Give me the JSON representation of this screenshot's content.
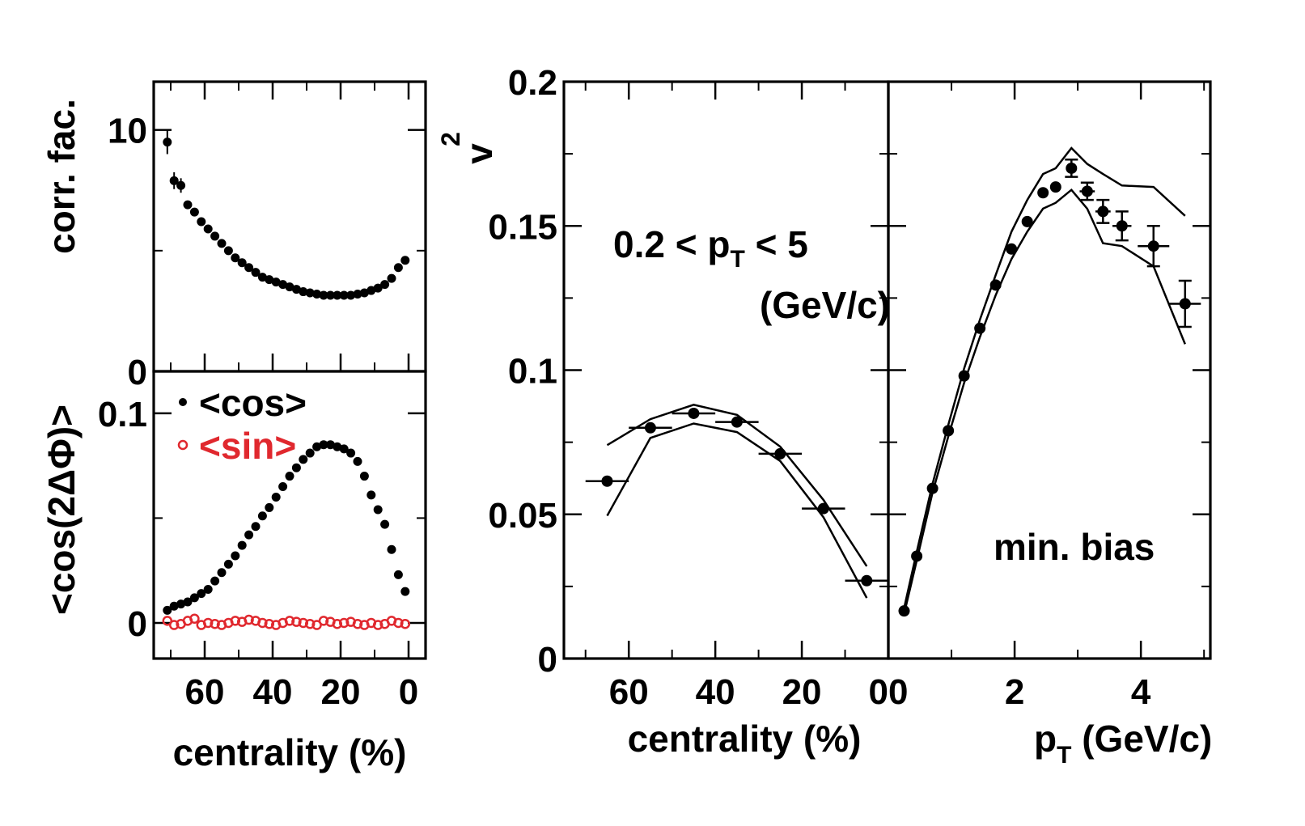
{
  "colors": {
    "cos": "#000000",
    "sin": "#e0282e",
    "axis": "#000000"
  },
  "chart_data": [
    {
      "type": "scatter",
      "ylabel": "corr. fac.",
      "xlim": [
        75,
        -5
      ],
      "ylim": [
        0,
        12
      ],
      "xticks": [
        60,
        40,
        20,
        0
      ],
      "yticks": [
        0,
        10
      ],
      "yticklabels": [
        "0",
        "10"
      ],
      "series": [
        {
          "x": [
            71,
            69,
            67,
            65,
            63,
            61,
            59,
            57,
            55,
            53,
            51,
            49,
            47,
            45,
            43,
            41,
            39,
            37,
            35,
            33,
            31,
            29,
            27,
            25,
            23,
            21,
            19,
            17,
            15,
            13,
            11,
            9,
            7,
            5,
            3,
            1
          ],
          "y": [
            9.5,
            7.9,
            7.7,
            6.9,
            6.6,
            6.2,
            5.9,
            5.6,
            5.3,
            5.0,
            4.7,
            4.5,
            4.3,
            4.1,
            3.9,
            3.8,
            3.7,
            3.6,
            3.5,
            3.4,
            3.3,
            3.25,
            3.2,
            3.15,
            3.15,
            3.15,
            3.15,
            3.15,
            3.2,
            3.25,
            3.35,
            3.45,
            3.6,
            3.85,
            4.3,
            4.6
          ],
          "yerr": [
            0.5,
            0.35,
            0.3,
            0.15,
            0.1,
            0.1,
            0.08,
            0.05,
            0.05,
            0.05,
            0.05,
            0.05,
            0.05,
            0.05,
            0.05,
            0.05,
            0.05,
            0.05,
            0.05,
            0.05,
            0.05,
            0.05,
            0.05,
            0.05,
            0.05,
            0.05,
            0.05,
            0.05,
            0.05,
            0.05,
            0.05,
            0.05,
            0.05,
            0.05,
            0.05,
            0.05
          ]
        }
      ]
    },
    {
      "type": "scatter",
      "ylabel": "<cos(2ΔΦ)>",
      "xlabel": "centrality (%)",
      "xlim": [
        75,
        -5
      ],
      "ylim": [
        -0.017,
        0.12
      ],
      "xticks": [
        60,
        40,
        20,
        0
      ],
      "xticklabels": [
        "60",
        "40",
        "20",
        "0"
      ],
      "yticks": [
        0,
        0.1
      ],
      "yticklabels": [
        "0",
        "0.1"
      ],
      "legend": [
        "<cos>",
        "<sin>"
      ],
      "series": [
        {
          "name": "<cos>",
          "x": [
            71,
            69,
            67,
            65,
            63,
            61,
            59,
            57,
            55,
            53,
            51,
            49,
            47,
            45,
            43,
            41,
            39,
            37,
            35,
            33,
            31,
            29,
            27,
            25,
            23,
            21,
            19,
            17,
            15,
            13,
            11,
            9,
            7,
            5,
            3,
            1
          ],
          "y": [
            0.006,
            0.008,
            0.009,
            0.01,
            0.012,
            0.014,
            0.016,
            0.02,
            0.024,
            0.028,
            0.032,
            0.037,
            0.042,
            0.046,
            0.051,
            0.055,
            0.06,
            0.065,
            0.07,
            0.074,
            0.078,
            0.081,
            0.084,
            0.085,
            0.085,
            0.084,
            0.083,
            0.081,
            0.077,
            0.07,
            0.061,
            0.054,
            0.047,
            0.035,
            0.023,
            0.015
          ]
        },
        {
          "name": "<sin>",
          "x": [
            71,
            69,
            67,
            65,
            63,
            61,
            59,
            57,
            55,
            53,
            51,
            49,
            47,
            45,
            43,
            41,
            39,
            37,
            35,
            33,
            31,
            29,
            27,
            25,
            23,
            21,
            19,
            17,
            15,
            13,
            11,
            9,
            7,
            5,
            3,
            1
          ],
          "y": [
            0.001,
            -0.001,
            -0.0005,
            0.001,
            0.002,
            -0.001,
            0,
            -0.0005,
            -0.001,
            0,
            0.001,
            0.0005,
            0.0015,
            0.001,
            0,
            -0.0005,
            -0.001,
            0,
            0.001,
            0.0005,
            0,
            -0.0005,
            -0.001,
            0.001,
            0.0005,
            -0.0005,
            0,
            0.0005,
            -0.0005,
            -0.001,
            0,
            -0.001,
            -0.0005,
            0.001,
            0,
            -0.0005
          ]
        }
      ]
    },
    {
      "type": "scatter",
      "ylabel": "v2",
      "xlabel": "centrality (%)",
      "xlim": [
        75,
        0
      ],
      "ylim": [
        0,
        0.2
      ],
      "xticks": [
        60,
        40,
        20,
        0
      ],
      "xticklabels": [
        "60",
        "40",
        "20",
        "0"
      ],
      "yticks": [
        0,
        0.05,
        0.1,
        0.15,
        0.2
      ],
      "yticklabels": [
        "0",
        "0.05",
        "0.1",
        "0.15",
        "0.2"
      ],
      "annotation": {
        "line1": "0.2 < p",
        "sub": "T",
        "line1b": " < 5",
        "line2": "(GeV/c)"
      },
      "series": [
        {
          "x": [
            65,
            55,
            45,
            35,
            25,
            15,
            5
          ],
          "y": [
            0.0615,
            0.08,
            0.085,
            0.082,
            0.071,
            0.052,
            0.027
          ],
          "xerr": 5
        },
        {
          "x": [
            65,
            55,
            45,
            35,
            25,
            15,
            5
          ],
          "y": [
            0.074,
            0.083,
            0.088,
            0.0845,
            0.0735,
            0.055,
            0.032
          ],
          "role": "sys-upper"
        },
        {
          "x": [
            65,
            55,
            45,
            35,
            25,
            15,
            5
          ],
          "y": [
            0.0495,
            0.0765,
            0.0815,
            0.0785,
            0.0685,
            0.049,
            0.021
          ],
          "role": "sys-lower"
        }
      ]
    },
    {
      "type": "scatter",
      "xlabel": "p_T (GeV/c)",
      "xlim": [
        0,
        5.1
      ],
      "ylim": [
        0,
        0.2
      ],
      "xticks": [
        0,
        2,
        4
      ],
      "xticklabels": [
        "0",
        "2",
        "4"
      ],
      "yticks": [
        0,
        0.05,
        0.1,
        0.15,
        0.2
      ],
      "annotation": "min. bias",
      "series": [
        {
          "x": [
            0.25,
            0.45,
            0.7,
            0.95,
            1.2,
            1.45,
            1.7,
            1.95,
            2.2,
            2.45,
            2.65,
            2.9,
            3.15,
            3.4,
            3.7,
            4.2,
            4.7
          ],
          "y": [
            0.0165,
            0.0355,
            0.059,
            0.079,
            0.098,
            0.1145,
            0.1295,
            0.142,
            0.1515,
            0.1615,
            0.1635,
            0.17,
            0.162,
            0.155,
            0.15,
            0.143,
            0.123
          ],
          "xerr": [
            0,
            0,
            0,
            0,
            0,
            0,
            0,
            0,
            0,
            0,
            0,
            0,
            0.12,
            0.12,
            0.15,
            0.25,
            0.25
          ],
          "yerr": [
            0,
            0,
            0,
            0,
            0,
            0,
            0,
            0,
            0,
            0,
            0,
            0.003,
            0.003,
            0.004,
            0.005,
            0.007,
            0.008
          ]
        },
        {
          "x": [
            0.25,
            0.45,
            0.7,
            0.95,
            1.2,
            1.45,
            1.7,
            1.95,
            2.2,
            2.45,
            2.65,
            2.9,
            3.15,
            3.4,
            3.7,
            4.2,
            4.7
          ],
          "y": [
            0.0175,
            0.037,
            0.0605,
            0.081,
            0.1005,
            0.1175,
            0.133,
            0.148,
            0.159,
            0.168,
            0.17,
            0.177,
            0.1715,
            0.168,
            0.164,
            0.1635,
            0.1535
          ],
          "role": "sys-upper"
        },
        {
          "x": [
            0.25,
            0.45,
            0.7,
            0.95,
            1.2,
            1.45,
            1.7,
            1.95,
            2.2,
            2.45,
            2.65,
            2.9,
            3.15,
            3.4,
            3.7,
            4.2,
            4.7
          ],
          "y": [
            0.0155,
            0.034,
            0.0575,
            0.077,
            0.0955,
            0.1115,
            0.126,
            0.1385,
            0.148,
            0.156,
            0.158,
            0.1625,
            0.156,
            0.144,
            0.143,
            0.136,
            0.109
          ],
          "role": "sys-lower"
        }
      ]
    }
  ]
}
